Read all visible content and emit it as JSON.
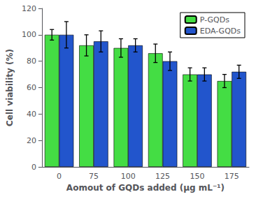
{
  "chart_data": {
    "type": "bar",
    "xlabel": "Aomout of GQDs added (μg mL⁻¹)",
    "ylabel": "Cell viability (%)",
    "categories": [
      "0",
      "75",
      "100",
      "125",
      "150",
      "175"
    ],
    "series": [
      {
        "name": "P-GQDs",
        "color": "#44dd44",
        "values": [
          100,
          92,
          90,
          86,
          70,
          65
        ],
        "errors": [
          4,
          8,
          7,
          7,
          5,
          5
        ]
      },
      {
        "name": "EDA-GQDs",
        "color": "#2255cc",
        "values": [
          100,
          95,
          92,
          80,
          70,
          72
        ],
        "errors": [
          10,
          8,
          5,
          7,
          5,
          5
        ]
      }
    ],
    "ylim": [
      0,
      120
    ],
    "yticks": [
      0,
      20,
      40,
      60,
      80,
      100,
      120
    ],
    "grid": false,
    "legend": "upper right"
  }
}
